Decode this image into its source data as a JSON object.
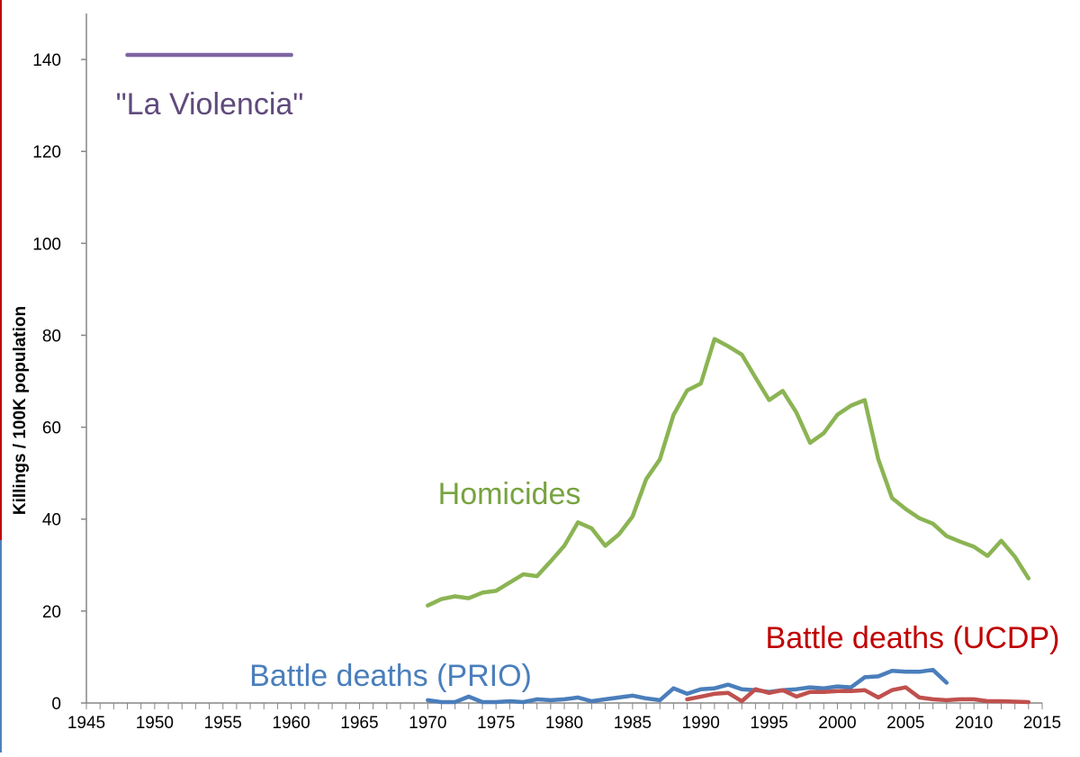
{
  "chart_data": {
    "type": "line",
    "title": "",
    "xlabel": "",
    "ylabel": "Killings / 100K population",
    "xlim": [
      1945,
      2015
    ],
    "ylim": [
      0,
      150
    ],
    "grid": false,
    "x_ticks": [
      "1945",
      "1950",
      "1955",
      "1960",
      "1965",
      "1970",
      "1975",
      "1980",
      "1985",
      "1990",
      "1995",
      "2000",
      "2005",
      "2010",
      "2015"
    ],
    "y_ticks": [
      "0",
      "20",
      "40",
      "60",
      "80",
      "100",
      "120",
      "140"
    ],
    "series": [
      {
        "name": "\"La Violencia\"",
        "color": "#8064a2",
        "x": [
          1948,
          1960
        ],
        "values": [
          141,
          141
        ]
      },
      {
        "name": "Homicides",
        "color": "#8bb453",
        "x": [
          1970,
          1971,
          1972,
          1973,
          1974,
          1975,
          1976,
          1977,
          1978,
          1979,
          1980,
          1981,
          1982,
          1983,
          1984,
          1985,
          1986,
          1987,
          1988,
          1989,
          1990,
          1991,
          1992,
          1993,
          1994,
          1995,
          1996,
          1997,
          1998,
          1999,
          2000,
          2001,
          2002,
          2003,
          2004,
          2005,
          2006,
          2007,
          2008,
          2009,
          2010,
          2011,
          2012,
          2013,
          2014
        ],
        "values": [
          21.2,
          22.6,
          23.2,
          22.8,
          24.0,
          24.4,
          26.2,
          28.0,
          27.6,
          30.8,
          34.2,
          39.3,
          38.0,
          34.2,
          36.7,
          40.6,
          48.7,
          53.0,
          62.7,
          68.0,
          69.5,
          79.2,
          77.6,
          75.8,
          70.8,
          65.9,
          67.9,
          63.2,
          56.6,
          58.7,
          62.7,
          64.7,
          65.9,
          53.0,
          44.6,
          42.2,
          40.2,
          39.0,
          36.3,
          35.1,
          34.0,
          32.0,
          35.3,
          31.8,
          27.1
        ]
      },
      {
        "name": "Battle deaths (PRIO)",
        "color": "#4a7ebb",
        "x": [
          1970,
          1971,
          1972,
          1973,
          1974,
          1975,
          1976,
          1977,
          1978,
          1979,
          1980,
          1981,
          1982,
          1983,
          1984,
          1985,
          1986,
          1987,
          1988,
          1989,
          1990,
          1991,
          1992,
          1993,
          1994,
          1995,
          1996,
          1997,
          1998,
          1999,
          2000,
          2001,
          2002,
          2003,
          2004,
          2005,
          2006,
          2007,
          2008
        ],
        "values": [
          0.6,
          0.2,
          0.2,
          1.4,
          0.2,
          0.2,
          0.4,
          0.2,
          0.8,
          0.6,
          0.8,
          1.2,
          0.4,
          0.8,
          1.2,
          1.6,
          1.0,
          0.6,
          3.2,
          2.0,
          3.0,
          3.2,
          4.0,
          3.0,
          2.8,
          2.4,
          2.8,
          3.0,
          3.4,
          3.2,
          3.6,
          3.4,
          5.6,
          5.8,
          7.0,
          6.8,
          6.8,
          7.2,
          4.4
        ]
      },
      {
        "name": "Battle deaths (UCDP)",
        "color": "#c0504d",
        "x": [
          1989,
          1990,
          1991,
          1992,
          1993,
          1994,
          1995,
          1996,
          1997,
          1998,
          1999,
          2000,
          2001,
          2002,
          2003,
          2004,
          2005,
          2006,
          2007,
          2008,
          2009,
          2010,
          2011,
          2012,
          2013,
          2014
        ],
        "values": [
          0.8,
          1.4,
          2.0,
          2.2,
          0.4,
          3.0,
          2.2,
          2.8,
          1.4,
          2.4,
          2.4,
          2.6,
          2.6,
          2.8,
          1.2,
          2.8,
          3.4,
          1.2,
          0.8,
          0.6,
          0.8,
          0.8,
          0.4,
          0.4,
          0.3,
          0.2
        ]
      }
    ]
  }
}
